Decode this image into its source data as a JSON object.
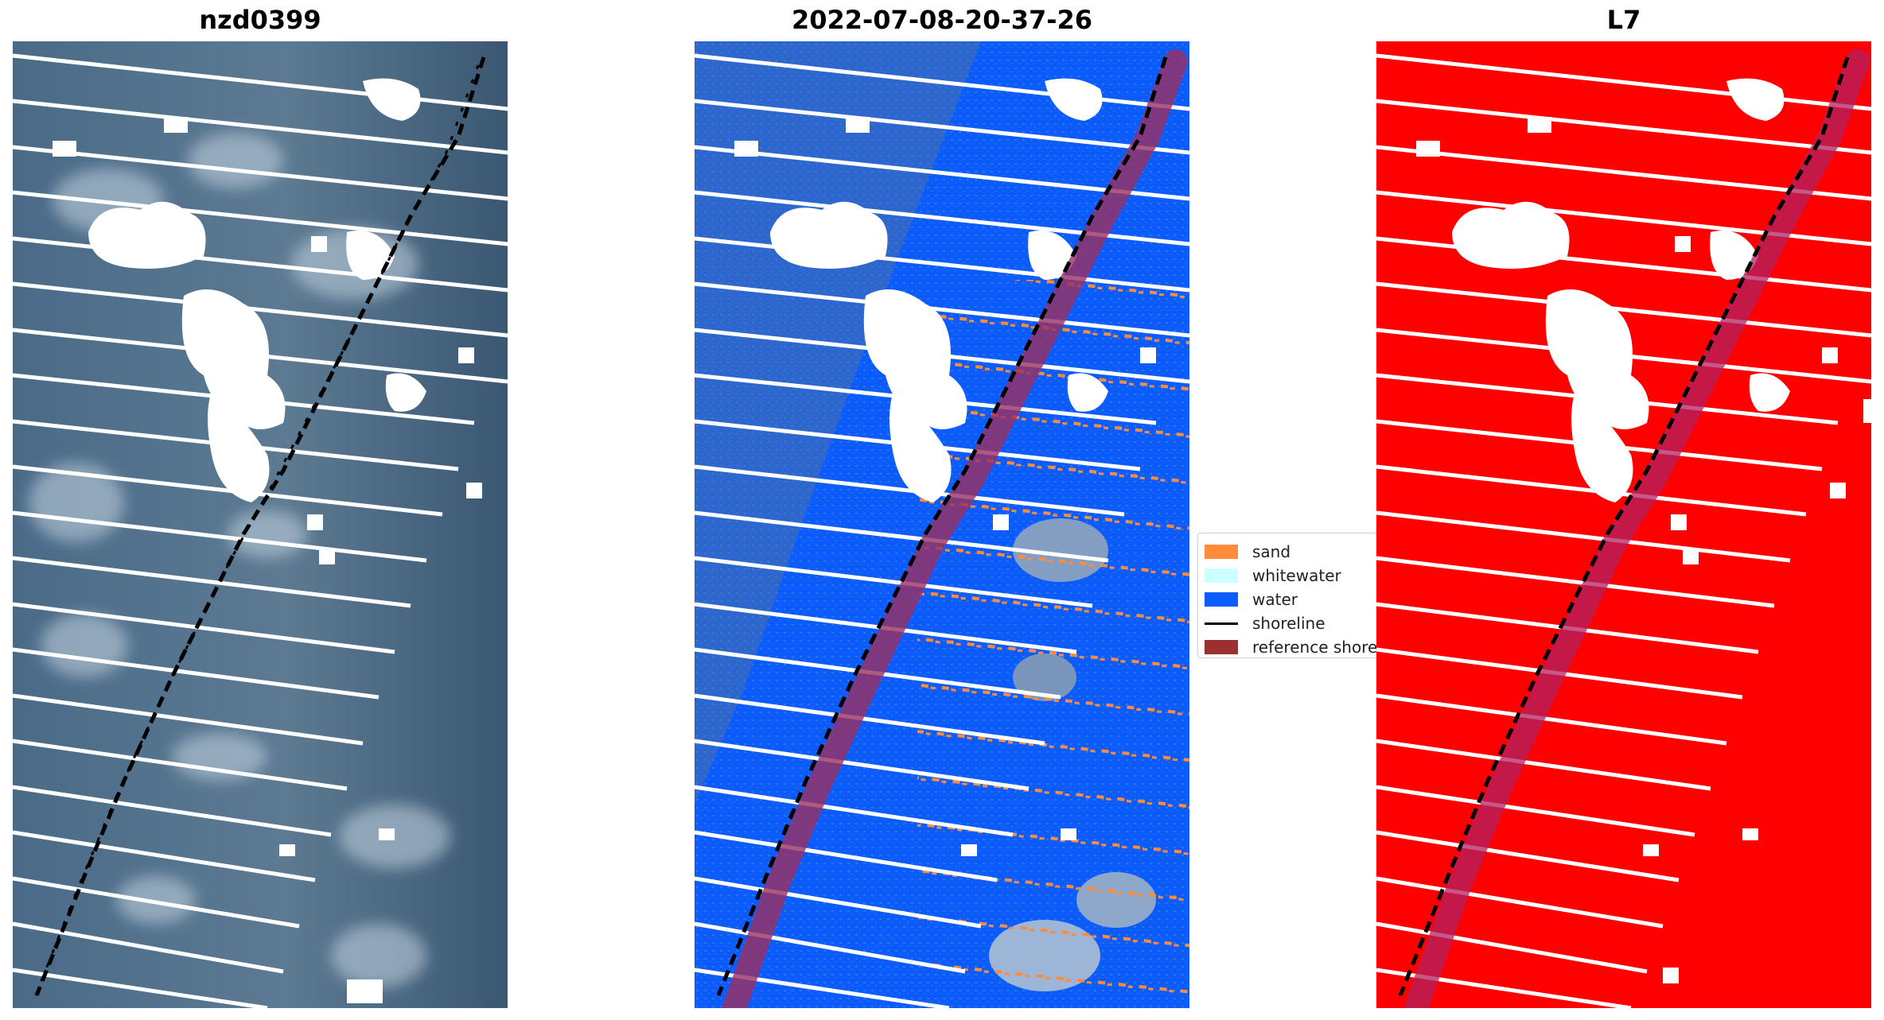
{
  "panels": [
    {
      "title": "nzd0399",
      "kind": "rgb"
    },
    {
      "title": "2022-07-08-20-37-26",
      "kind": "classified"
    },
    {
      "title": "L7",
      "kind": "mask"
    }
  ],
  "legend": {
    "items": [
      {
        "label": "sand",
        "color": "#ff8c3a",
        "type": "patch"
      },
      {
        "label": "whitewater",
        "color": "#ccffff",
        "type": "patch"
      },
      {
        "label": "water",
        "color": "#0a5cff",
        "type": "patch"
      },
      {
        "label": "shoreline",
        "color": "#000000",
        "type": "line"
      },
      {
        "label": "reference shore",
        "color": "#9b3030",
        "type": "patch"
      }
    ]
  },
  "colors": {
    "rgb_water": "#3c5a78",
    "water": "#0a5cff",
    "sand": "#ff8c3a",
    "mask_red": "#ff0000",
    "reference_shore": "#9b3030",
    "shoreline": "#000000",
    "cloud": "#ffffff"
  }
}
